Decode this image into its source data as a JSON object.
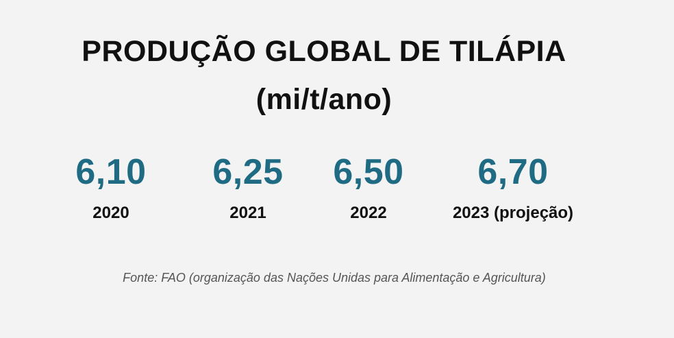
{
  "title": "PRODUÇÃO GLOBAL DE TILÁPIA",
  "unit": "(mi/t/ano)",
  "stats": [
    {
      "value": "6,10",
      "year": "2020"
    },
    {
      "value": "6,25",
      "year": "2021"
    },
    {
      "value": "6,50",
      "year": "2022"
    },
    {
      "value": "6,70",
      "year": "2023 (projeção)"
    }
  ],
  "source": "Fonte: FAO (organização das Nações Unidas para Alimentação e Agricultura)",
  "colors": {
    "background": "#f3f3f3",
    "value": "#1f6b84",
    "text": "#111111",
    "source": "#555555"
  }
}
